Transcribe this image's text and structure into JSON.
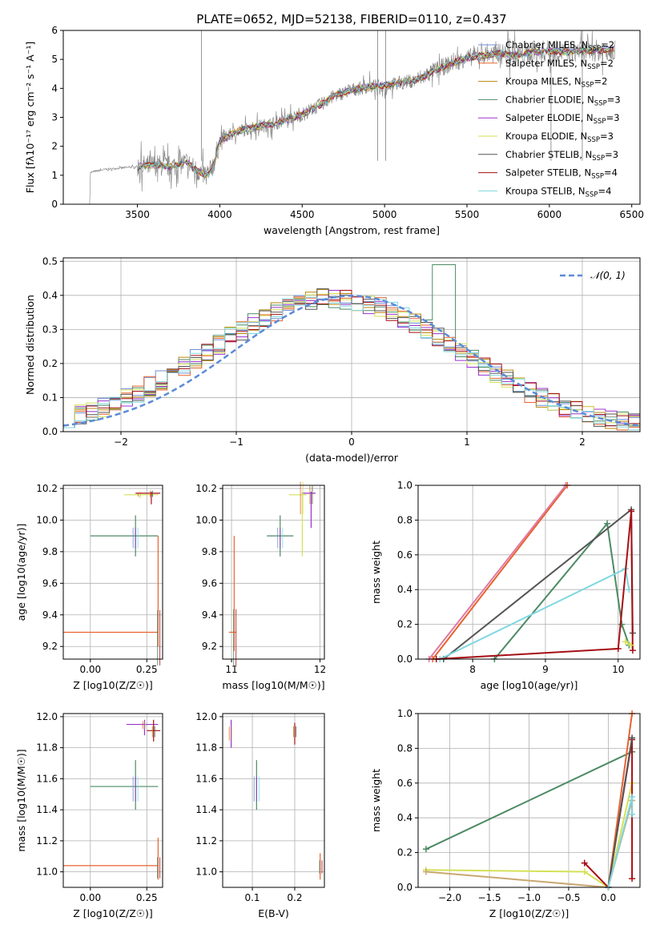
{
  "figure": {
    "title": "PLATE=0652, MJD=52138, FIBERID=0110, z=0.437"
  },
  "colors": {
    "data_gray": "#7f7f7f",
    "grid": "#b0b0b0",
    "normal_curve": "#5b8bd8"
  },
  "legend_series": [
    {
      "label": "Chabrier MILES, N",
      "sub": "SSP",
      "suffix": "=2",
      "color": "#6b8fd6"
    },
    {
      "label": "Salpeter MILES, N",
      "sub": "SSP",
      "suffix": "=2",
      "color": "#e8622f"
    },
    {
      "label": "Kroupa MILES, N",
      "sub": "SSP",
      "suffix": "=2",
      "color": "#b8860b"
    },
    {
      "label": "Chabrier ELODIE, N",
      "sub": "SSP",
      "suffix": "=3",
      "color": "#4c8a63"
    },
    {
      "label": "Salpeter ELODIE, N",
      "sub": "SSP",
      "suffix": "=3",
      "color": "#9932cc"
    },
    {
      "label": "Kroupa ELODIE, N",
      "sub": "SSP",
      "suffix": "=3",
      "color": "#d4e157"
    },
    {
      "label": "Chabrier STELIB, N",
      "sub": "SSP",
      "suffix": "=3",
      "color": "#555555"
    },
    {
      "label": "Salpeter STELIB, N",
      "sub": "SSP",
      "suffix": "=4",
      "color": "#a50f15"
    },
    {
      "label": "Kroupa STELIB, N",
      "sub": "SSP",
      "suffix": "=4",
      "color": "#7fd8e0"
    }
  ],
  "chart_data": [
    {
      "id": "spectrum",
      "type": "line",
      "xlabel": "wavelength [Angstrom, rest frame]",
      "ylabel": "Flux [fλ10⁻¹⁷ erg cm⁻² s⁻¹ A⁻¹]",
      "xlim": [
        3050,
        6550
      ],
      "ylim": [
        0,
        6
      ],
      "xticks": [
        3500,
        4000,
        4500,
        5000,
        5500,
        6000,
        6500
      ],
      "yticks": [
        0,
        1,
        2,
        3,
        4,
        5,
        6
      ],
      "continuum": [
        [
          3210,
          0
        ],
        [
          3215,
          1.1
        ],
        [
          3300,
          1.2
        ],
        [
          3400,
          1.25
        ],
        [
          3500,
          1.3
        ],
        [
          3600,
          1.35
        ],
        [
          3700,
          1.3
        ],
        [
          3800,
          1.45
        ],
        [
          3850,
          1.2
        ],
        [
          3900,
          1.05
        ],
        [
          3930,
          1.0
        ],
        [
          3970,
          1.5
        ],
        [
          4000,
          2.2
        ],
        [
          4100,
          2.5
        ],
        [
          4200,
          2.65
        ],
        [
          4300,
          2.75
        ],
        [
          4400,
          2.9
        ],
        [
          4500,
          3.1
        ],
        [
          4600,
          3.4
        ],
        [
          4700,
          3.75
        ],
        [
          4800,
          3.95
        ],
        [
          4900,
          4.05
        ],
        [
          5000,
          4.1
        ],
        [
          5100,
          4.2
        ],
        [
          5200,
          4.3
        ],
        [
          5300,
          4.6
        ],
        [
          5400,
          4.85
        ],
        [
          5500,
          5.05
        ],
        [
          5600,
          5.15
        ],
        [
          5700,
          5.2
        ],
        [
          5800,
          5.15
        ],
        [
          5900,
          5.25
        ],
        [
          6000,
          5.3
        ],
        [
          6100,
          5.25
        ],
        [
          6200,
          5.3
        ],
        [
          6300,
          5.3
        ],
        [
          6400,
          5.35
        ]
      ]
    },
    {
      "id": "residuals",
      "type": "line",
      "xlabel": "(data-model)/error",
      "ylabel": "Normed distribution",
      "xlim": [
        -2.5,
        2.5
      ],
      "ylim": [
        0,
        0.51
      ],
      "xticks": [
        -2,
        -1,
        0,
        1,
        2
      ],
      "yticks": [
        0.0,
        0.1,
        0.2,
        0.3,
        0.4,
        0.5
      ],
      "legend": "𝒩(0, 1)"
    },
    {
      "id": "age_vs_Z",
      "type": "scatter",
      "xlabel": "Z [log10(Z/Z☉)]",
      "ylabel": "age [log10(age/yr)]",
      "xlim": [
        -0.12,
        0.32
      ],
      "ylim": [
        9.12,
        10.22
      ],
      "xticks": [
        0.0,
        0.25
      ],
      "yticks": [
        9.2,
        9.4,
        9.6,
        9.8,
        10.0,
        10.2
      ],
      "points": [
        {
          "x": 0.2,
          "y": 9.9,
          "xlo": 0.0,
          "xhi": 0.3,
          "ylo": 9.77,
          "yhi": 10.03,
          "color": "#4c8a63"
        },
        {
          "x": 0.22,
          "y": 10.16,
          "xlo": 0.15,
          "xhi": 0.3,
          "ylo": 10.14,
          "yhi": 10.18,
          "color": "#d4e157"
        },
        {
          "x": 0.27,
          "y": 10.17,
          "xlo": 0.2,
          "xhi": 0.31,
          "ylo": 10.1,
          "yhi": 10.18,
          "color": "#a50f15"
        },
        {
          "x": 0.3,
          "y": 9.29,
          "xlo": -0.12,
          "xhi": 0.3,
          "ylo": 9.2,
          "yhi": 9.9,
          "color": "#e8622f"
        }
      ]
    },
    {
      "id": "age_vs_mass",
      "type": "scatter",
      "xlabel": "mass [log10(M/M☉)]",
      "ylabel": "",
      "xlim": [
        10.9,
        12.05
      ],
      "ylim": [
        9.12,
        10.22
      ],
      "xticks": [
        11,
        12
      ],
      "yticks": [
        9.2,
        9.4,
        9.6,
        9.8,
        10.0,
        10.2
      ],
      "points": [
        {
          "x": 11.55,
          "y": 9.9,
          "xlo": 11.4,
          "xhi": 11.7,
          "ylo": 9.77,
          "yhi": 10.03,
          "color": "#4c8a63"
        },
        {
          "x": 11.8,
          "y": 10.16,
          "xlo": 11.65,
          "xhi": 11.85,
          "ylo": 9.77,
          "yhi": 10.18,
          "color": "#d4e157"
        },
        {
          "x": 11.9,
          "y": 10.17,
          "xlo": 11.8,
          "xhi": 11.95,
          "ylo": 9.95,
          "yhi": 10.18,
          "color": "#9932cc"
        },
        {
          "x": 11.03,
          "y": 9.29,
          "xlo": 10.97,
          "xhi": 11.05,
          "ylo": 9.17,
          "yhi": 9.9,
          "color": "#e8622f"
        }
      ]
    },
    {
      "id": "weight_vs_age",
      "type": "line",
      "xlabel": "age [log10(age/yr)]",
      "ylabel": "mass weight",
      "xlim": [
        7.25,
        10.3
      ],
      "ylim": [
        0,
        1
      ],
      "xticks": [
        8,
        9,
        10
      ],
      "yticks": [
        0.0,
        0.2,
        0.4,
        0.6,
        0.8,
        1.0
      ]
    },
    {
      "id": "mass_vs_Z",
      "type": "scatter",
      "xlabel": "Z [log10(Z/Z☉)]",
      "ylabel": "mass [log10(M/M☉)]",
      "xlim": [
        -0.12,
        0.32
      ],
      "ylim": [
        10.9,
        12.02
      ],
      "xticks": [
        0.0,
        0.25
      ],
      "yticks": [
        11.0,
        11.2,
        11.4,
        11.6,
        11.8,
        12.0
      ],
      "points": [
        {
          "x": 0.2,
          "y": 11.55,
          "xlo": 0.0,
          "xhi": 0.3,
          "ylo": 11.4,
          "yhi": 11.72,
          "color": "#4c8a63"
        },
        {
          "x": 0.24,
          "y": 11.95,
          "xlo": 0.16,
          "xhi": 0.3,
          "ylo": 11.88,
          "yhi": 11.98,
          "color": "#9932cc"
        },
        {
          "x": 0.28,
          "y": 11.91,
          "xlo": 0.25,
          "xhi": 0.31,
          "ylo": 11.84,
          "yhi": 11.98,
          "color": "#a50f15"
        },
        {
          "x": 0.3,
          "y": 11.04,
          "xlo": -0.12,
          "xhi": 0.3,
          "ylo": 10.95,
          "yhi": 11.22,
          "color": "#e8622f"
        }
      ]
    },
    {
      "id": "mass_vs_ebv",
      "type": "scatter",
      "xlabel": "E(B-V)",
      "ylabel": "",
      "xlim": [
        0.03,
        0.27
      ],
      "ylim": [
        10.9,
        12.02
      ],
      "xticks": [
        0.1,
        0.2
      ],
      "yticks": [
        11.0,
        11.2,
        11.4,
        11.6,
        11.8,
        12.0
      ],
      "points": [
        {
          "x": 0.11,
          "y": 11.55,
          "xlo": 0.11,
          "xhi": 0.11,
          "ylo": 11.4,
          "yhi": 11.72,
          "color": "#4c8a63"
        },
        {
          "x": 0.05,
          "y": 11.9,
          "xlo": 0.05,
          "xhi": 0.05,
          "ylo": 11.8,
          "yhi": 11.98,
          "color": "#9932cc"
        },
        {
          "x": 0.2,
          "y": 11.91,
          "xlo": 0.2,
          "xhi": 0.2,
          "ylo": 11.82,
          "yhi": 11.96,
          "color": "#a50f15"
        },
        {
          "x": 0.26,
          "y": 11.04,
          "xlo": 0.26,
          "xhi": 0.26,
          "ylo": 10.95,
          "yhi": 11.12,
          "color": "#e8622f"
        }
      ]
    },
    {
      "id": "weight_vs_Z",
      "type": "line",
      "xlabel": "Z [log10(Z/Z☉)]",
      "ylabel": "mass weight",
      "xlim": [
        -2.4,
        0.4
      ],
      "ylim": [
        0,
        1
      ],
      "xticks": [
        -2.0,
        -1.5,
        -1.0,
        -0.5,
        0.0
      ],
      "yticks": [
        0.0,
        0.2,
        0.4,
        0.6,
        0.8,
        1.0
      ]
    }
  ]
}
